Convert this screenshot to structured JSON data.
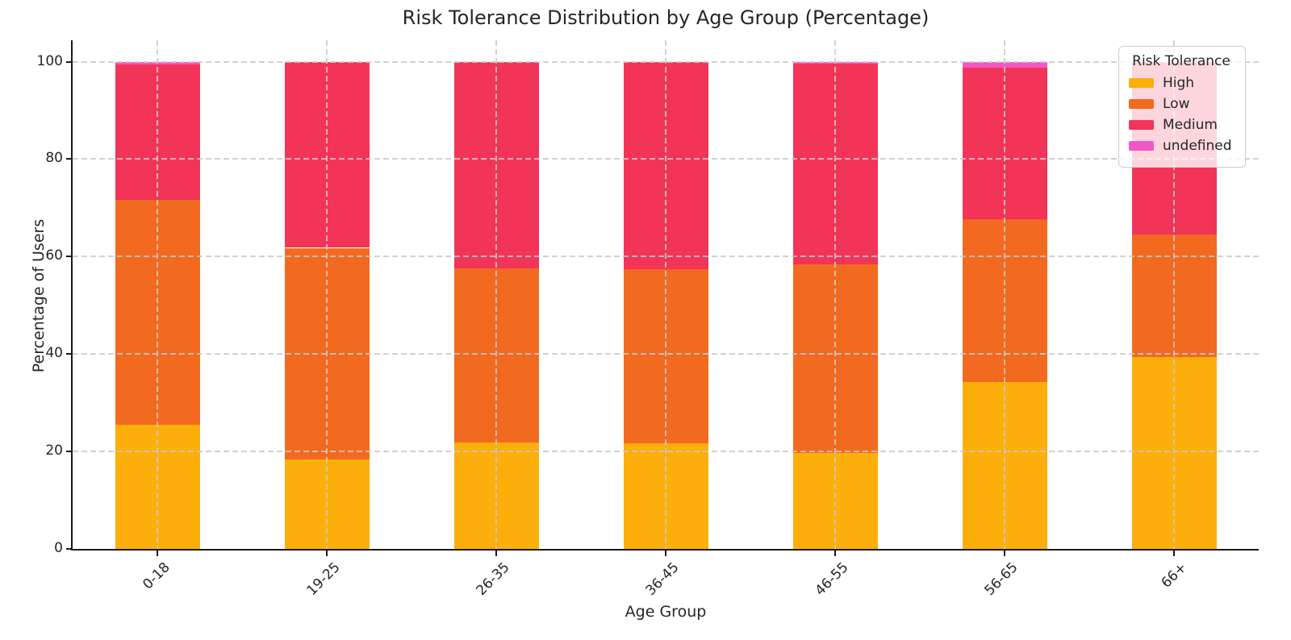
{
  "chart_data": {
    "type": "bar",
    "stacked": true,
    "title": "Risk Tolerance Distribution by Age Group (Percentage)",
    "xlabel": "Age Group",
    "ylabel": "Percentage of Users",
    "categories": [
      "0-18",
      "19-25",
      "26-35",
      "36-45",
      "46-55",
      "56-65",
      "66+"
    ],
    "series": [
      {
        "name": "High",
        "color": "#fcae0a",
        "values": [
          25.4,
          18.3,
          21.9,
          21.7,
          19.7,
          34.3,
          39.3
        ]
      },
      {
        "name": "Low",
        "color": "#f26a1f",
        "values": [
          46.3,
          43.5,
          35.7,
          35.7,
          38.7,
          33.3,
          25.3
        ]
      },
      {
        "name": "Medium",
        "color": "#f23458",
        "values": [
          27.8,
          38.2,
          42.4,
          42.6,
          41.2,
          31.2,
          35.4
        ]
      },
      {
        "name": "undefined",
        "color": "#f258c6",
        "values": [
          0.5,
          0.0,
          0.0,
          0.0,
          0.4,
          1.2,
          0.0
        ]
      }
    ],
    "ylim": [
      0,
      104.4
    ],
    "yticks": [
      0,
      20,
      40,
      60,
      80,
      100
    ],
    "grid": true,
    "grid_style": "dashed",
    "grid_color": "#c9c9c9",
    "legend": {
      "title": "Risk Tolerance",
      "position": "upper right"
    },
    "colors": {
      "background": "#ffffff",
      "spine": "#1a1a1a",
      "text": "#262626"
    }
  }
}
